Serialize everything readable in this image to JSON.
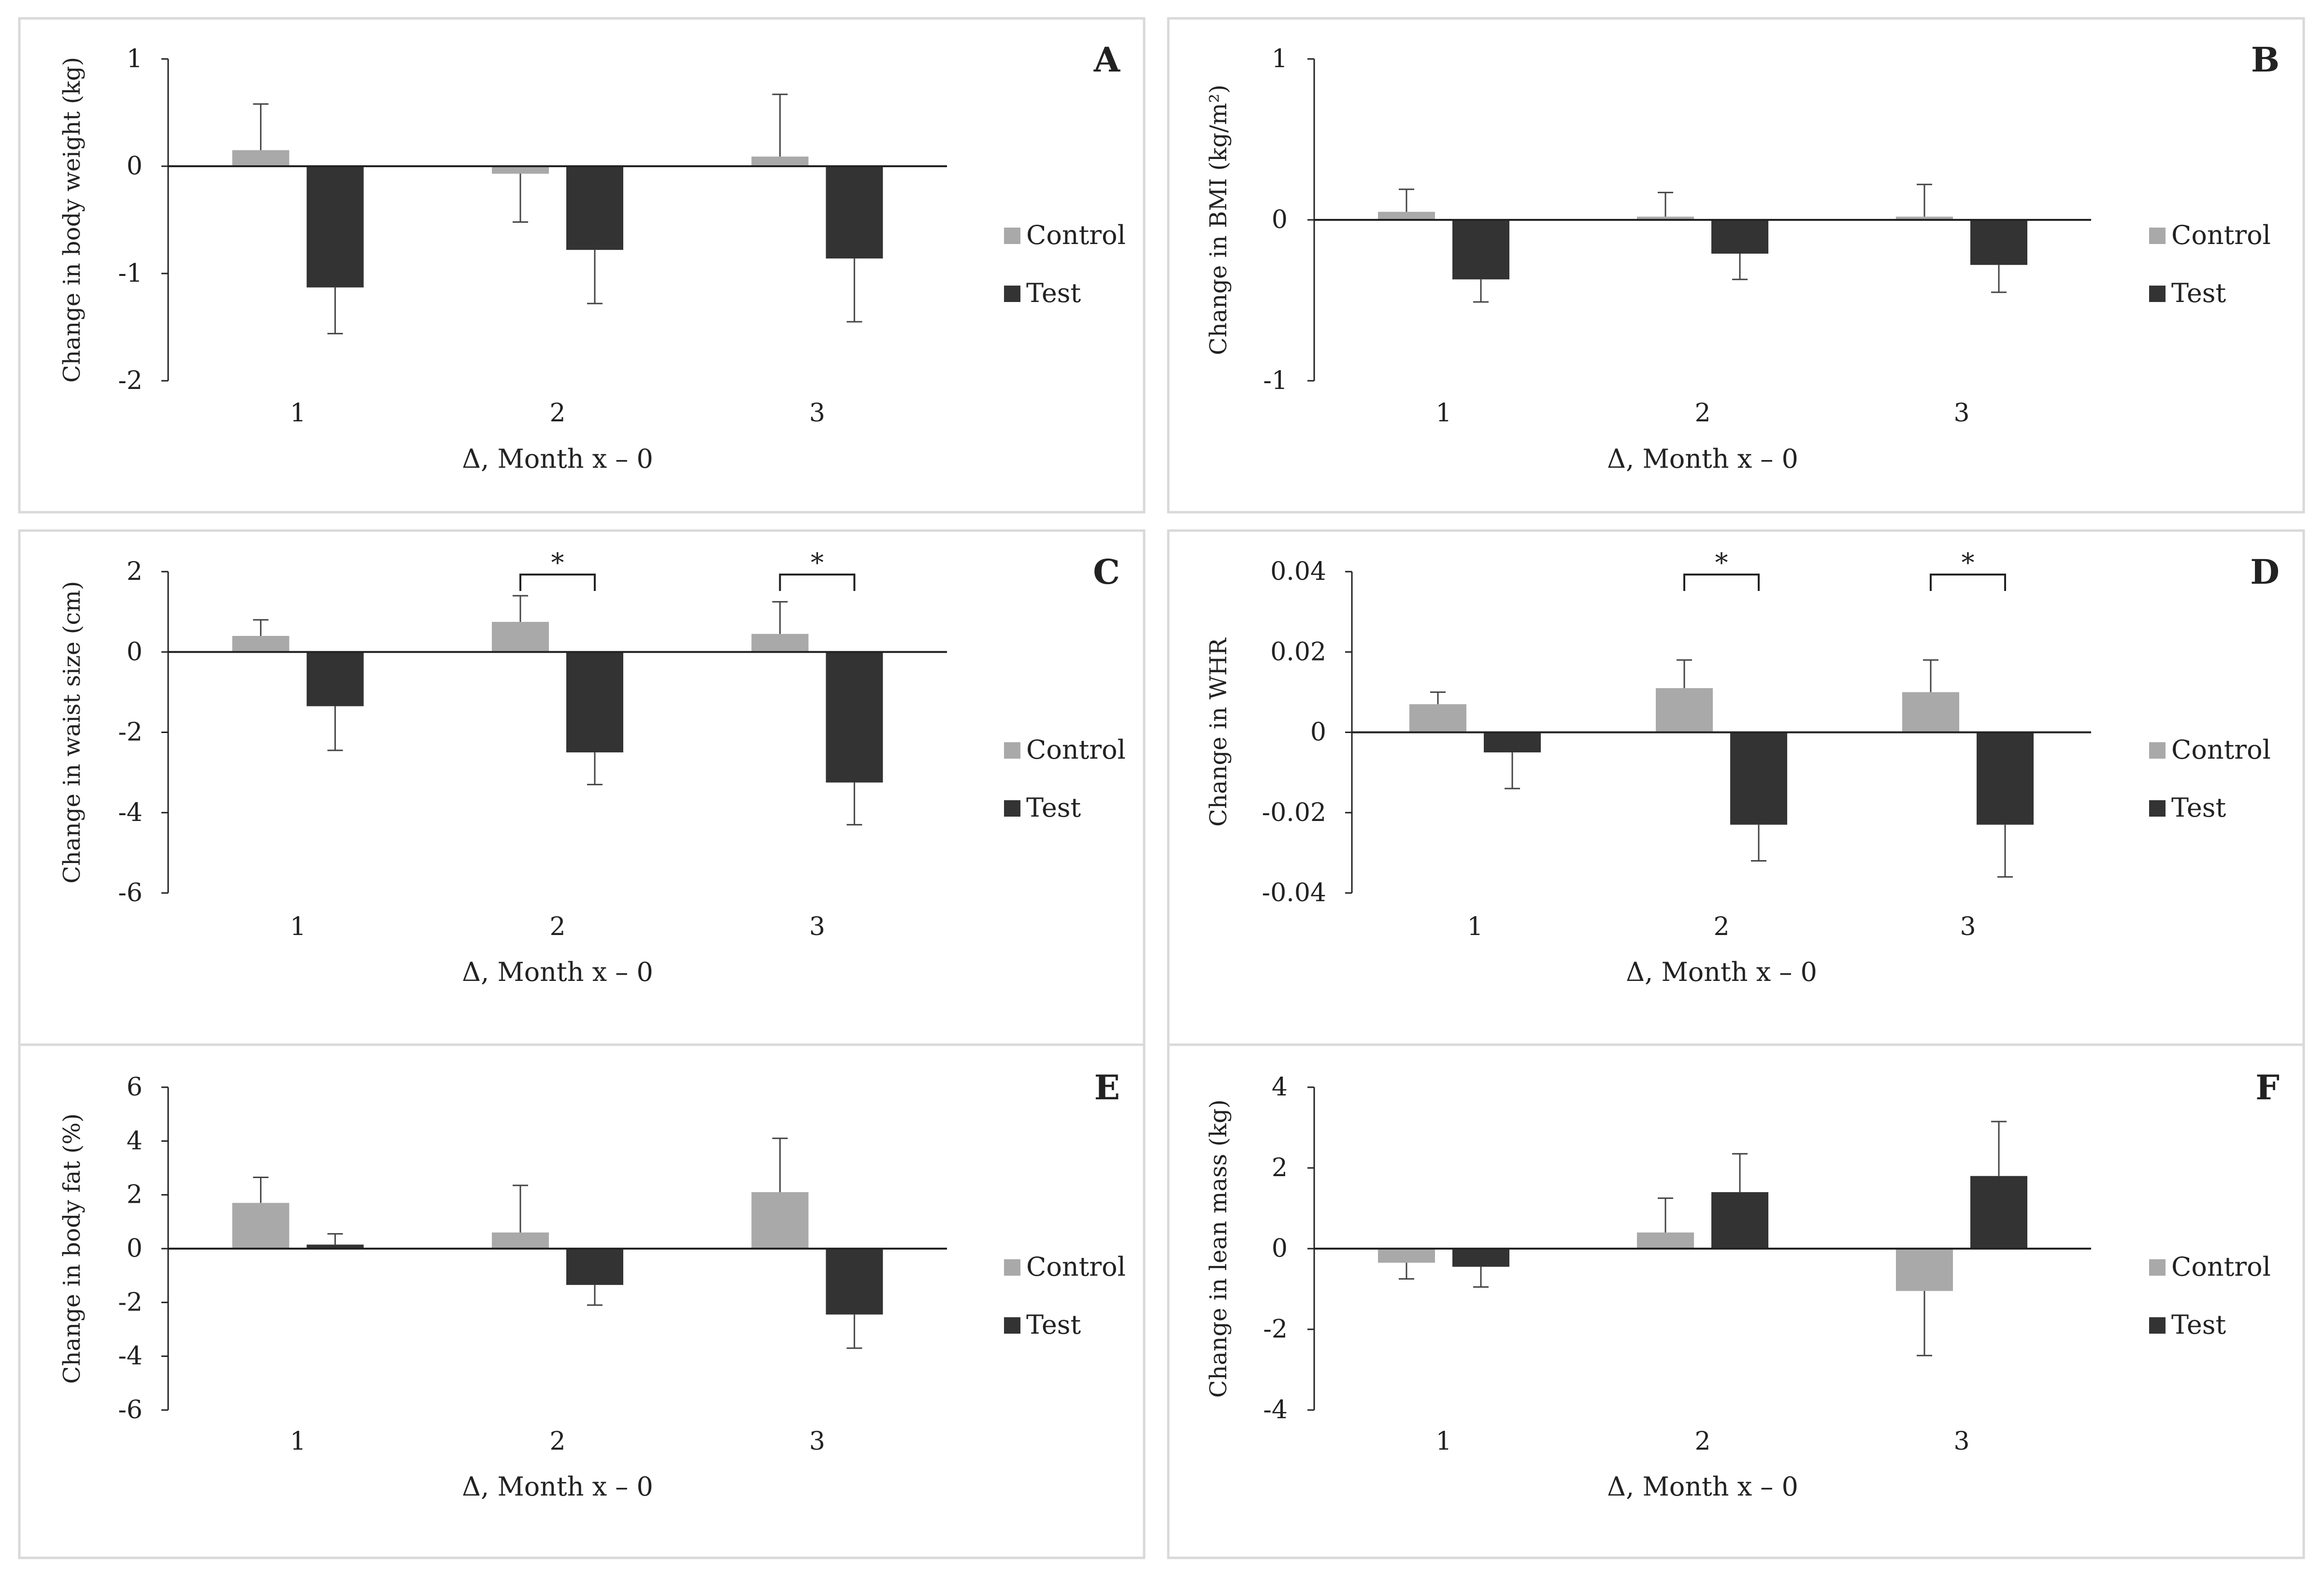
{
  "colors": {
    "control": "#a9a9a9",
    "test": "#333333",
    "axis": "#222222",
    "border": "#d9d9d9"
  },
  "chart_data": [
    {
      "panel": "A",
      "type": "bar",
      "categories": [
        "1",
        "2",
        "3"
      ],
      "xlabel": "Δ, Month x – 0",
      "ylabel": "Change in body weight (kg)",
      "ylim": [
        -2,
        1
      ],
      "yticks": [
        "1",
        "0",
        "-1",
        "-2"
      ],
      "series": [
        {
          "name": "Control",
          "values": [
            0.15,
            -0.07,
            0.09
          ],
          "errors": [
            0.43,
            0.45,
            0.58
          ]
        },
        {
          "name": "Test",
          "values": [
            -1.13,
            -0.78,
            -0.86
          ],
          "errors": [
            0.43,
            0.5,
            0.59
          ]
        }
      ],
      "significance": []
    },
    {
      "panel": "B",
      "type": "bar",
      "categories": [
        "1",
        "2",
        "3"
      ],
      "xlabel": "Δ, Month x – 0",
      "ylabel": "Change in BMI  (kg/m²)",
      "ylim": [
        -1,
        1
      ],
      "yticks": [
        "1",
        "0",
        "-1"
      ],
      "series": [
        {
          "name": "Control",
          "values": [
            0.05,
            0.02,
            0.02
          ],
          "errors": [
            0.14,
            0.15,
            0.2
          ]
        },
        {
          "name": "Test",
          "values": [
            -0.37,
            -0.21,
            -0.28
          ],
          "errors": [
            0.14,
            0.16,
            0.17
          ]
        }
      ],
      "significance": []
    },
    {
      "panel": "C",
      "type": "bar",
      "categories": [
        "1",
        "2",
        "3"
      ],
      "xlabel": "Δ, Month x – 0",
      "ylabel": "Change in waist size (cm)",
      "ylim": [
        -6,
        2
      ],
      "yticks": [
        "2",
        "0",
        "-2",
        "-4",
        "-6"
      ],
      "series": [
        {
          "name": "Control",
          "values": [
            0.4,
            0.75,
            0.45
          ],
          "errors": [
            0.4,
            0.65,
            0.8
          ]
        },
        {
          "name": "Test",
          "values": [
            -1.35,
            -2.5,
            -3.25
          ],
          "errors": [
            1.1,
            0.8,
            1.05
          ]
        }
      ],
      "significance": [
        {
          "category": "2",
          "label": "*"
        },
        {
          "category": "3",
          "label": "*"
        }
      ]
    },
    {
      "panel": "D",
      "type": "bar",
      "categories": [
        "1",
        "2",
        "3"
      ],
      "xlabel": "Δ, Month x – 0",
      "ylabel": "Change in WHR",
      "ylim": [
        -0.04,
        0.04
      ],
      "yticks": [
        "0.04",
        "0.02",
        "0",
        "-0.02",
        "-0.04"
      ],
      "series": [
        {
          "name": "Control",
          "values": [
            0.007,
            0.011,
            0.01
          ],
          "errors": [
            0.003,
            0.007,
            0.008
          ]
        },
        {
          "name": "Test",
          "values": [
            -0.005,
            -0.023,
            -0.023
          ],
          "errors": [
            0.009,
            0.009,
            0.013
          ]
        }
      ],
      "significance": [
        {
          "category": "2",
          "label": "*"
        },
        {
          "category": "3",
          "label": "*"
        }
      ]
    },
    {
      "panel": "E",
      "type": "bar",
      "categories": [
        "1",
        "2",
        "3"
      ],
      "xlabel": "Δ, Month x – 0",
      "ylabel": "Change in body fat (%)",
      "ylim": [
        -6,
        6
      ],
      "yticks": [
        "6",
        "4",
        "2",
        "0",
        "-2",
        "-4",
        "-6"
      ],
      "series": [
        {
          "name": "Control",
          "values": [
            1.7,
            0.6,
            2.1
          ],
          "errors": [
            0.95,
            1.75,
            2.0
          ]
        },
        {
          "name": "Test",
          "values": [
            0.15,
            -1.35,
            -2.45
          ],
          "errors": [
            0.4,
            0.75,
            1.25
          ]
        }
      ],
      "significance": []
    },
    {
      "panel": "F",
      "type": "bar",
      "categories": [
        "1",
        "2",
        "3"
      ],
      "xlabel": "Δ, Month x – 0",
      "ylabel": "Change  in lean mass (kg)",
      "ylim": [
        -4,
        4
      ],
      "yticks": [
        "4",
        "2",
        "0",
        "-2",
        "-4"
      ],
      "series": [
        {
          "name": "Control",
          "values": [
            -0.35,
            0.4,
            -1.05
          ],
          "errors": [
            0.4,
            0.85,
            1.6
          ]
        },
        {
          "name": "Test",
          "values": [
            -0.45,
            1.4,
            1.8
          ],
          "errors": [
            0.5,
            0.95,
            1.35
          ]
        }
      ],
      "significance": []
    }
  ]
}
